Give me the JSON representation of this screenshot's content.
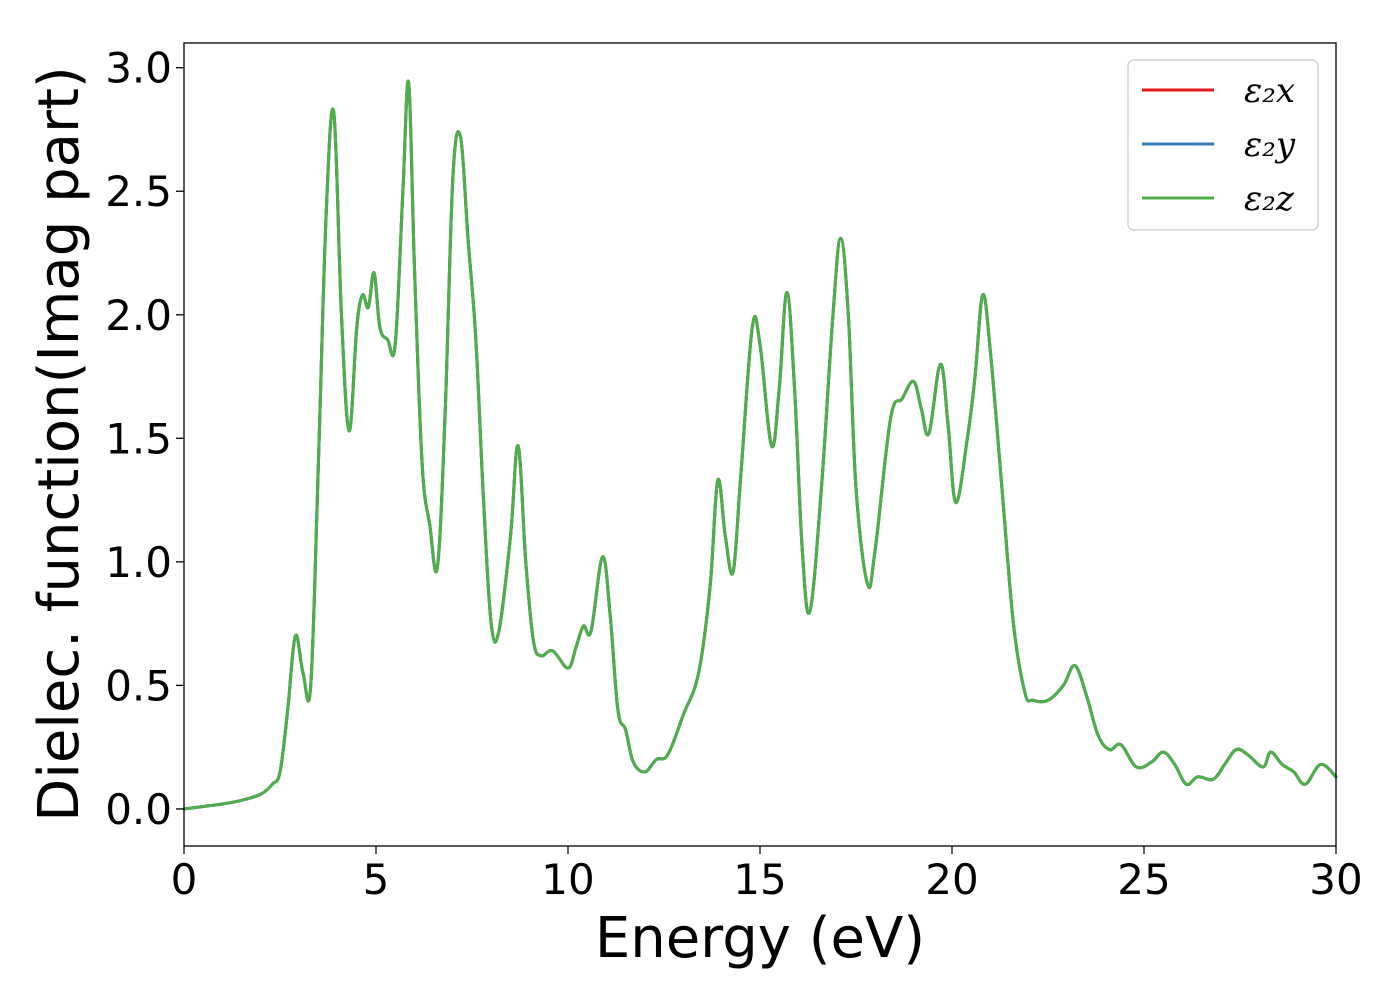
{
  "chart_data": {
    "type": "line",
    "xlabel": "Energy (eV)",
    "ylabel": "Dielec. function(Imag part)",
    "xlim": [
      0,
      30
    ],
    "ylim": [
      -0.15,
      3.1
    ],
    "grid": false,
    "legend_position": "top-right",
    "x_ticks": [
      0,
      5,
      10,
      15,
      20,
      25,
      30
    ],
    "x_tick_labels": [
      "0",
      "5",
      "10",
      "15",
      "20",
      "25",
      "30"
    ],
    "y_ticks": [
      0.0,
      0.5,
      1.0,
      1.5,
      2.0,
      2.5,
      3.0
    ],
    "y_tick_labels": [
      "0.0",
      "0.5",
      "1.0",
      "1.5",
      "2.0",
      "2.5",
      "3.0"
    ],
    "series": [
      {
        "name": "ε₂x",
        "color": "#e41a1c",
        "x": [
          0,
          0.5,
          1.0,
          1.5,
          2.0,
          2.3,
          2.5,
          2.7,
          2.9,
          3.1,
          3.3,
          3.5,
          3.7,
          3.9,
          4.1,
          4.3,
          4.5,
          4.65,
          4.8,
          4.95,
          5.1,
          5.3,
          5.5,
          5.7,
          5.85,
          6.0,
          6.2,
          6.4,
          6.6,
          6.8,
          7.0,
          7.2,
          7.4,
          7.6,
          7.8,
          8.0,
          8.2,
          8.5,
          8.7,
          8.9,
          9.1,
          9.3,
          9.6,
          10.0,
          10.2,
          10.4,
          10.6,
          10.9,
          11.1,
          11.3,
          11.5,
          11.7,
          12.0,
          12.3,
          12.6,
          13.0,
          13.4,
          13.7,
          13.9,
          14.1,
          14.3,
          14.5,
          14.8,
          15.0,
          15.3,
          15.5,
          15.7,
          15.9,
          16.1,
          16.3,
          16.6,
          16.9,
          17.1,
          17.3,
          17.5,
          17.8,
          18.0,
          18.4,
          18.7,
          19.0,
          19.2,
          19.4,
          19.7,
          19.9,
          20.1,
          20.4,
          20.6,
          20.8,
          21.0,
          21.3,
          21.6,
          21.9,
          22.1,
          22.5,
          22.9,
          23.2,
          23.5,
          23.8,
          24.1,
          24.4,
          24.8,
          25.2,
          25.5,
          25.8,
          26.1,
          26.4,
          26.8,
          27.1,
          27.4,
          27.7,
          28.1,
          28.3,
          28.6,
          28.9,
          29.2,
          29.6,
          30.0
        ],
        "y": [
          0.0,
          0.01,
          0.02,
          0.035,
          0.06,
          0.1,
          0.15,
          0.4,
          0.7,
          0.55,
          0.5,
          1.4,
          2.4,
          2.82,
          2.0,
          1.53,
          1.95,
          2.08,
          2.03,
          2.17,
          1.95,
          1.9,
          1.88,
          2.5,
          2.94,
          2.2,
          1.4,
          1.15,
          0.98,
          1.6,
          2.55,
          2.72,
          2.3,
          1.9,
          1.25,
          0.75,
          0.72,
          1.1,
          1.47,
          1.0,
          0.68,
          0.62,
          0.64,
          0.57,
          0.65,
          0.74,
          0.72,
          1.02,
          0.78,
          0.4,
          0.32,
          0.19,
          0.15,
          0.2,
          0.22,
          0.38,
          0.55,
          0.9,
          1.33,
          1.1,
          0.96,
          1.35,
          1.95,
          1.88,
          1.47,
          1.7,
          2.09,
          1.7,
          1.05,
          0.8,
          1.3,
          2.0,
          2.31,
          2.0,
          1.3,
          0.91,
          1.05,
          1.58,
          1.66,
          1.73,
          1.62,
          1.52,
          1.8,
          1.55,
          1.24,
          1.5,
          1.75,
          2.08,
          1.85,
          1.3,
          0.75,
          0.47,
          0.44,
          0.44,
          0.5,
          0.58,
          0.46,
          0.3,
          0.24,
          0.26,
          0.17,
          0.19,
          0.23,
          0.18,
          0.1,
          0.13,
          0.12,
          0.18,
          0.24,
          0.22,
          0.17,
          0.23,
          0.18,
          0.15,
          0.1,
          0.18,
          0.13
        ]
      },
      {
        "name": "ε₂y",
        "color": "#377eb8",
        "x": [
          0,
          0.5,
          1.0,
          1.5,
          2.0,
          2.3,
          2.5,
          2.7,
          2.9,
          3.1,
          3.3,
          3.5,
          3.7,
          3.9,
          4.1,
          4.3,
          4.5,
          4.65,
          4.8,
          4.95,
          5.1,
          5.3,
          5.5,
          5.7,
          5.85,
          6.0,
          6.2,
          6.4,
          6.6,
          6.8,
          7.0,
          7.2,
          7.4,
          7.6,
          7.8,
          8.0,
          8.2,
          8.5,
          8.7,
          8.9,
          9.1,
          9.3,
          9.6,
          10.0,
          10.2,
          10.4,
          10.6,
          10.9,
          11.1,
          11.3,
          11.5,
          11.7,
          12.0,
          12.3,
          12.6,
          13.0,
          13.4,
          13.7,
          13.9,
          14.1,
          14.3,
          14.5,
          14.8,
          15.0,
          15.3,
          15.5,
          15.7,
          15.9,
          16.1,
          16.3,
          16.6,
          16.9,
          17.1,
          17.3,
          17.5,
          17.8,
          18.0,
          18.4,
          18.7,
          19.0,
          19.2,
          19.4,
          19.7,
          19.9,
          20.1,
          20.4,
          20.6,
          20.8,
          21.0,
          21.3,
          21.6,
          21.9,
          22.1,
          22.5,
          22.9,
          23.2,
          23.5,
          23.8,
          24.1,
          24.4,
          24.8,
          25.2,
          25.5,
          25.8,
          26.1,
          26.4,
          26.8,
          27.1,
          27.4,
          27.7,
          28.1,
          28.3,
          28.6,
          28.9,
          29.2,
          29.6,
          30.0
        ],
        "y": [
          0.0,
          0.01,
          0.02,
          0.035,
          0.06,
          0.1,
          0.15,
          0.4,
          0.7,
          0.55,
          0.5,
          1.4,
          2.4,
          2.82,
          2.0,
          1.53,
          1.95,
          2.08,
          2.03,
          2.17,
          1.95,
          1.9,
          1.88,
          2.5,
          2.94,
          2.2,
          1.4,
          1.15,
          0.98,
          1.6,
          2.55,
          2.72,
          2.3,
          1.9,
          1.25,
          0.75,
          0.72,
          1.1,
          1.47,
          1.0,
          0.68,
          0.62,
          0.64,
          0.57,
          0.65,
          0.74,
          0.72,
          1.02,
          0.78,
          0.4,
          0.32,
          0.19,
          0.15,
          0.2,
          0.22,
          0.38,
          0.55,
          0.9,
          1.33,
          1.1,
          0.96,
          1.35,
          1.95,
          1.88,
          1.47,
          1.7,
          2.09,
          1.7,
          1.05,
          0.8,
          1.3,
          2.0,
          2.31,
          2.0,
          1.3,
          0.91,
          1.05,
          1.58,
          1.66,
          1.73,
          1.62,
          1.52,
          1.8,
          1.55,
          1.24,
          1.5,
          1.75,
          2.08,
          1.85,
          1.3,
          0.75,
          0.47,
          0.44,
          0.44,
          0.5,
          0.58,
          0.46,
          0.3,
          0.24,
          0.26,
          0.17,
          0.19,
          0.23,
          0.18,
          0.1,
          0.13,
          0.12,
          0.18,
          0.24,
          0.22,
          0.17,
          0.23,
          0.18,
          0.15,
          0.1,
          0.18,
          0.13
        ]
      },
      {
        "name": "ε₂z",
        "color": "#4daf4a",
        "x": [
          0,
          0.5,
          1.0,
          1.5,
          2.0,
          2.3,
          2.5,
          2.7,
          2.9,
          3.1,
          3.3,
          3.5,
          3.7,
          3.9,
          4.1,
          4.3,
          4.5,
          4.65,
          4.8,
          4.95,
          5.1,
          5.3,
          5.5,
          5.7,
          5.85,
          6.0,
          6.2,
          6.4,
          6.6,
          6.8,
          7.0,
          7.2,
          7.4,
          7.6,
          7.8,
          8.0,
          8.2,
          8.5,
          8.7,
          8.9,
          9.1,
          9.3,
          9.6,
          10.0,
          10.2,
          10.4,
          10.6,
          10.9,
          11.1,
          11.3,
          11.5,
          11.7,
          12.0,
          12.3,
          12.6,
          13.0,
          13.4,
          13.7,
          13.9,
          14.1,
          14.3,
          14.5,
          14.8,
          15.0,
          15.3,
          15.5,
          15.7,
          15.9,
          16.1,
          16.3,
          16.6,
          16.9,
          17.1,
          17.3,
          17.5,
          17.8,
          18.0,
          18.4,
          18.7,
          19.0,
          19.2,
          19.4,
          19.7,
          19.9,
          20.1,
          20.4,
          20.6,
          20.8,
          21.0,
          21.3,
          21.6,
          21.9,
          22.1,
          22.5,
          22.9,
          23.2,
          23.5,
          23.8,
          24.1,
          24.4,
          24.8,
          25.2,
          25.5,
          25.8,
          26.1,
          26.4,
          26.8,
          27.1,
          27.4,
          27.7,
          28.1,
          28.3,
          28.6,
          28.9,
          29.2,
          29.6,
          30.0
        ],
        "y": [
          0.0,
          0.01,
          0.02,
          0.035,
          0.06,
          0.1,
          0.15,
          0.4,
          0.7,
          0.55,
          0.5,
          1.4,
          2.4,
          2.82,
          2.0,
          1.53,
          1.95,
          2.08,
          2.03,
          2.17,
          1.95,
          1.9,
          1.88,
          2.5,
          2.94,
          2.2,
          1.4,
          1.15,
          0.98,
          1.6,
          2.55,
          2.72,
          2.3,
          1.9,
          1.25,
          0.75,
          0.72,
          1.1,
          1.47,
          1.0,
          0.68,
          0.62,
          0.64,
          0.57,
          0.65,
          0.74,
          0.72,
          1.02,
          0.78,
          0.4,
          0.32,
          0.19,
          0.15,
          0.2,
          0.22,
          0.38,
          0.55,
          0.9,
          1.33,
          1.1,
          0.96,
          1.35,
          1.95,
          1.88,
          1.47,
          1.7,
          2.09,
          1.7,
          1.05,
          0.8,
          1.3,
          2.0,
          2.31,
          2.0,
          1.3,
          0.91,
          1.05,
          1.58,
          1.66,
          1.73,
          1.62,
          1.52,
          1.8,
          1.55,
          1.24,
          1.5,
          1.75,
          2.08,
          1.85,
          1.3,
          0.75,
          0.47,
          0.44,
          0.44,
          0.5,
          0.58,
          0.46,
          0.3,
          0.24,
          0.26,
          0.17,
          0.19,
          0.23,
          0.18,
          0.1,
          0.13,
          0.12,
          0.18,
          0.24,
          0.22,
          0.17,
          0.23,
          0.18,
          0.15,
          0.1,
          0.18,
          0.13
        ]
      }
    ]
  }
}
